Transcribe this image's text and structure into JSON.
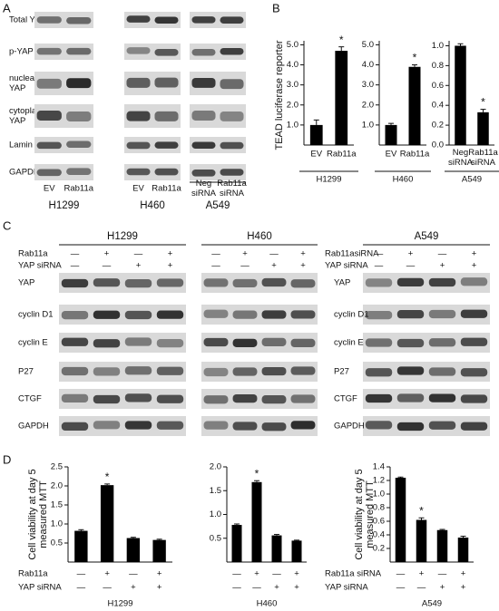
{
  "panel_labels": [
    "A",
    "B",
    "C",
    "D"
  ],
  "blot_a": {
    "rows": [
      "Total YAP",
      "p-YAP",
      [
        "nuclear",
        "YAP"
      ],
      [
        "cytoplasmic",
        "YAP"
      ],
      "Lamin B",
      "GAPDH"
    ],
    "groups": [
      {
        "name": "H1299",
        "lanes": [
          "EV",
          "Rab11a"
        ]
      },
      {
        "name": "H460",
        "lanes": [
          "EV",
          "Rab11a"
        ]
      },
      {
        "name": "A549",
        "lanes": [
          [
            "Neg",
            "siRNA"
          ],
          [
            "Rab11a",
            "siRNA"
          ]
        ]
      }
    ]
  },
  "blot_c": {
    "groups": [
      "H1299",
      "H460",
      "A549"
    ],
    "condition_labels_left": [
      "Rab11a",
      "YAP siRNA"
    ],
    "condition_labels_right": [
      "Rab11asiRNA",
      "YAP siRNA"
    ],
    "signs": [
      [
        "—",
        "+",
        "—",
        "+"
      ],
      [
        "—",
        "—",
        "+",
        "+"
      ]
    ],
    "rows": [
      "YAP",
      "cyclin D1",
      "cyclin E",
      "P27",
      "CTGF",
      "GAPDH"
    ]
  },
  "b_y_label": "TEAD luciferase reporter",
  "chart_data": [
    {
      "type": "bar",
      "x_label": "H1299",
      "categories": [
        "EV",
        "Rab11a"
      ],
      "values": [
        1.0,
        4.7
      ],
      "errors": [
        0.25,
        0.2
      ],
      "significance": [
        null,
        "*"
      ],
      "color": "#000000",
      "ylim": [
        0,
        5.2
      ],
      "yticks": [
        {
          "value": 1,
          "label": "1.0"
        },
        {
          "value": 2,
          "label": "2.0"
        },
        {
          "value": 3,
          "label": "3.0"
        },
        {
          "value": 4,
          "label": "4.0"
        },
        {
          "value": 5,
          "label": "5.0"
        }
      ]
    },
    {
      "type": "bar",
      "x_label": "H460",
      "categories": [
        "EV",
        "Rab11a"
      ],
      "values": [
        1.0,
        3.9
      ],
      "errors": [
        0.08,
        0.1
      ],
      "significance": [
        null,
        "*"
      ],
      "color": "#000000",
      "ylim": [
        0,
        5.2
      ],
      "yticks": [
        {
          "value": 1,
          "label": "1.0"
        },
        {
          "value": 2,
          "label": "2.0"
        },
        {
          "value": 3,
          "label": "3.0"
        },
        {
          "value": 4,
          "label": "4.0"
        },
        {
          "value": 5,
          "label": "5.0"
        }
      ]
    },
    {
      "type": "bar",
      "x_label": "A549",
      "categories": [
        [
          "Neg",
          "siRNA"
        ],
        [
          "Rab11a",
          "siRNA"
        ]
      ],
      "values": [
        1.0,
        0.33
      ],
      "errors": [
        0.02,
        0.03
      ],
      "significance": [
        null,
        "*"
      ],
      "color": "#000000",
      "ylim": [
        0,
        1.05
      ],
      "yticks": [
        {
          "value": 0,
          "label": "0.0"
        },
        0.2,
        0.4,
        0.6,
        0.8,
        {
          "value": 1,
          "label": "1.0"
        }
      ]
    },
    {
      "type": "bar",
      "x_label": "H1299",
      "y_label": [
        "Cell viability at day 5",
        "measured MTT"
      ],
      "values": [
        0.82,
        2.02,
        0.63,
        0.58
      ],
      "errors": [
        0.03,
        0.03,
        0.02,
        0.02
      ],
      "significance": [
        null,
        "*",
        null,
        null
      ],
      "color": "#000000",
      "conditions": {
        "labels": [
          "Rab11a",
          "YAP siRNA"
        ],
        "signs": [
          [
            "—",
            "+",
            "—",
            "+"
          ],
          [
            "—",
            "—",
            "+",
            "+"
          ]
        ]
      },
      "ylim": [
        0,
        2.5
      ],
      "yticks": [
        0.5,
        {
          "value": 1,
          "label": "1.0"
        },
        1.5,
        {
          "value": 2,
          "label": "2.0"
        },
        2.5
      ]
    },
    {
      "type": "bar",
      "x_label": "H460",
      "values": [
        0.78,
        1.68,
        0.56,
        0.45
      ],
      "errors": [
        0.02,
        0.03,
        0.02,
        0.01
      ],
      "significance": [
        null,
        "*",
        null,
        null
      ],
      "color": "#000000",
      "conditions": {
        "signs": [
          [
            "—",
            "+",
            "—",
            "+"
          ],
          [
            "—",
            "—",
            "+",
            "+"
          ]
        ]
      },
      "ylim": [
        0,
        2.0
      ],
      "yticks": [
        0.5,
        {
          "value": 1,
          "label": "1.0"
        },
        1.5,
        {
          "value": 2,
          "label": "2.0"
        }
      ]
    },
    {
      "type": "bar",
      "x_label": "A549",
      "y_label": [
        "Cell viability at day 5",
        "measured MTT"
      ],
      "values": [
        1.24,
        0.62,
        0.47,
        0.36
      ],
      "errors": [
        0.01,
        0.03,
        0.01,
        0.02
      ],
      "significance": [
        null,
        "*",
        null,
        null
      ],
      "color": "#000000",
      "conditions": {
        "labels": [
          "Rab11a siRNA",
          "YAP siRNA"
        ],
        "signs": [
          [
            "—",
            "+",
            "—",
            "+"
          ],
          [
            "—",
            "—",
            "+",
            "+"
          ]
        ]
      },
      "ylim": [
        0,
        1.4
      ],
      "yticks": [
        0.2,
        0.4,
        0.6,
        0.8,
        {
          "value": 1,
          "label": "1.0"
        },
        1.2,
        1.4
      ]
    }
  ]
}
